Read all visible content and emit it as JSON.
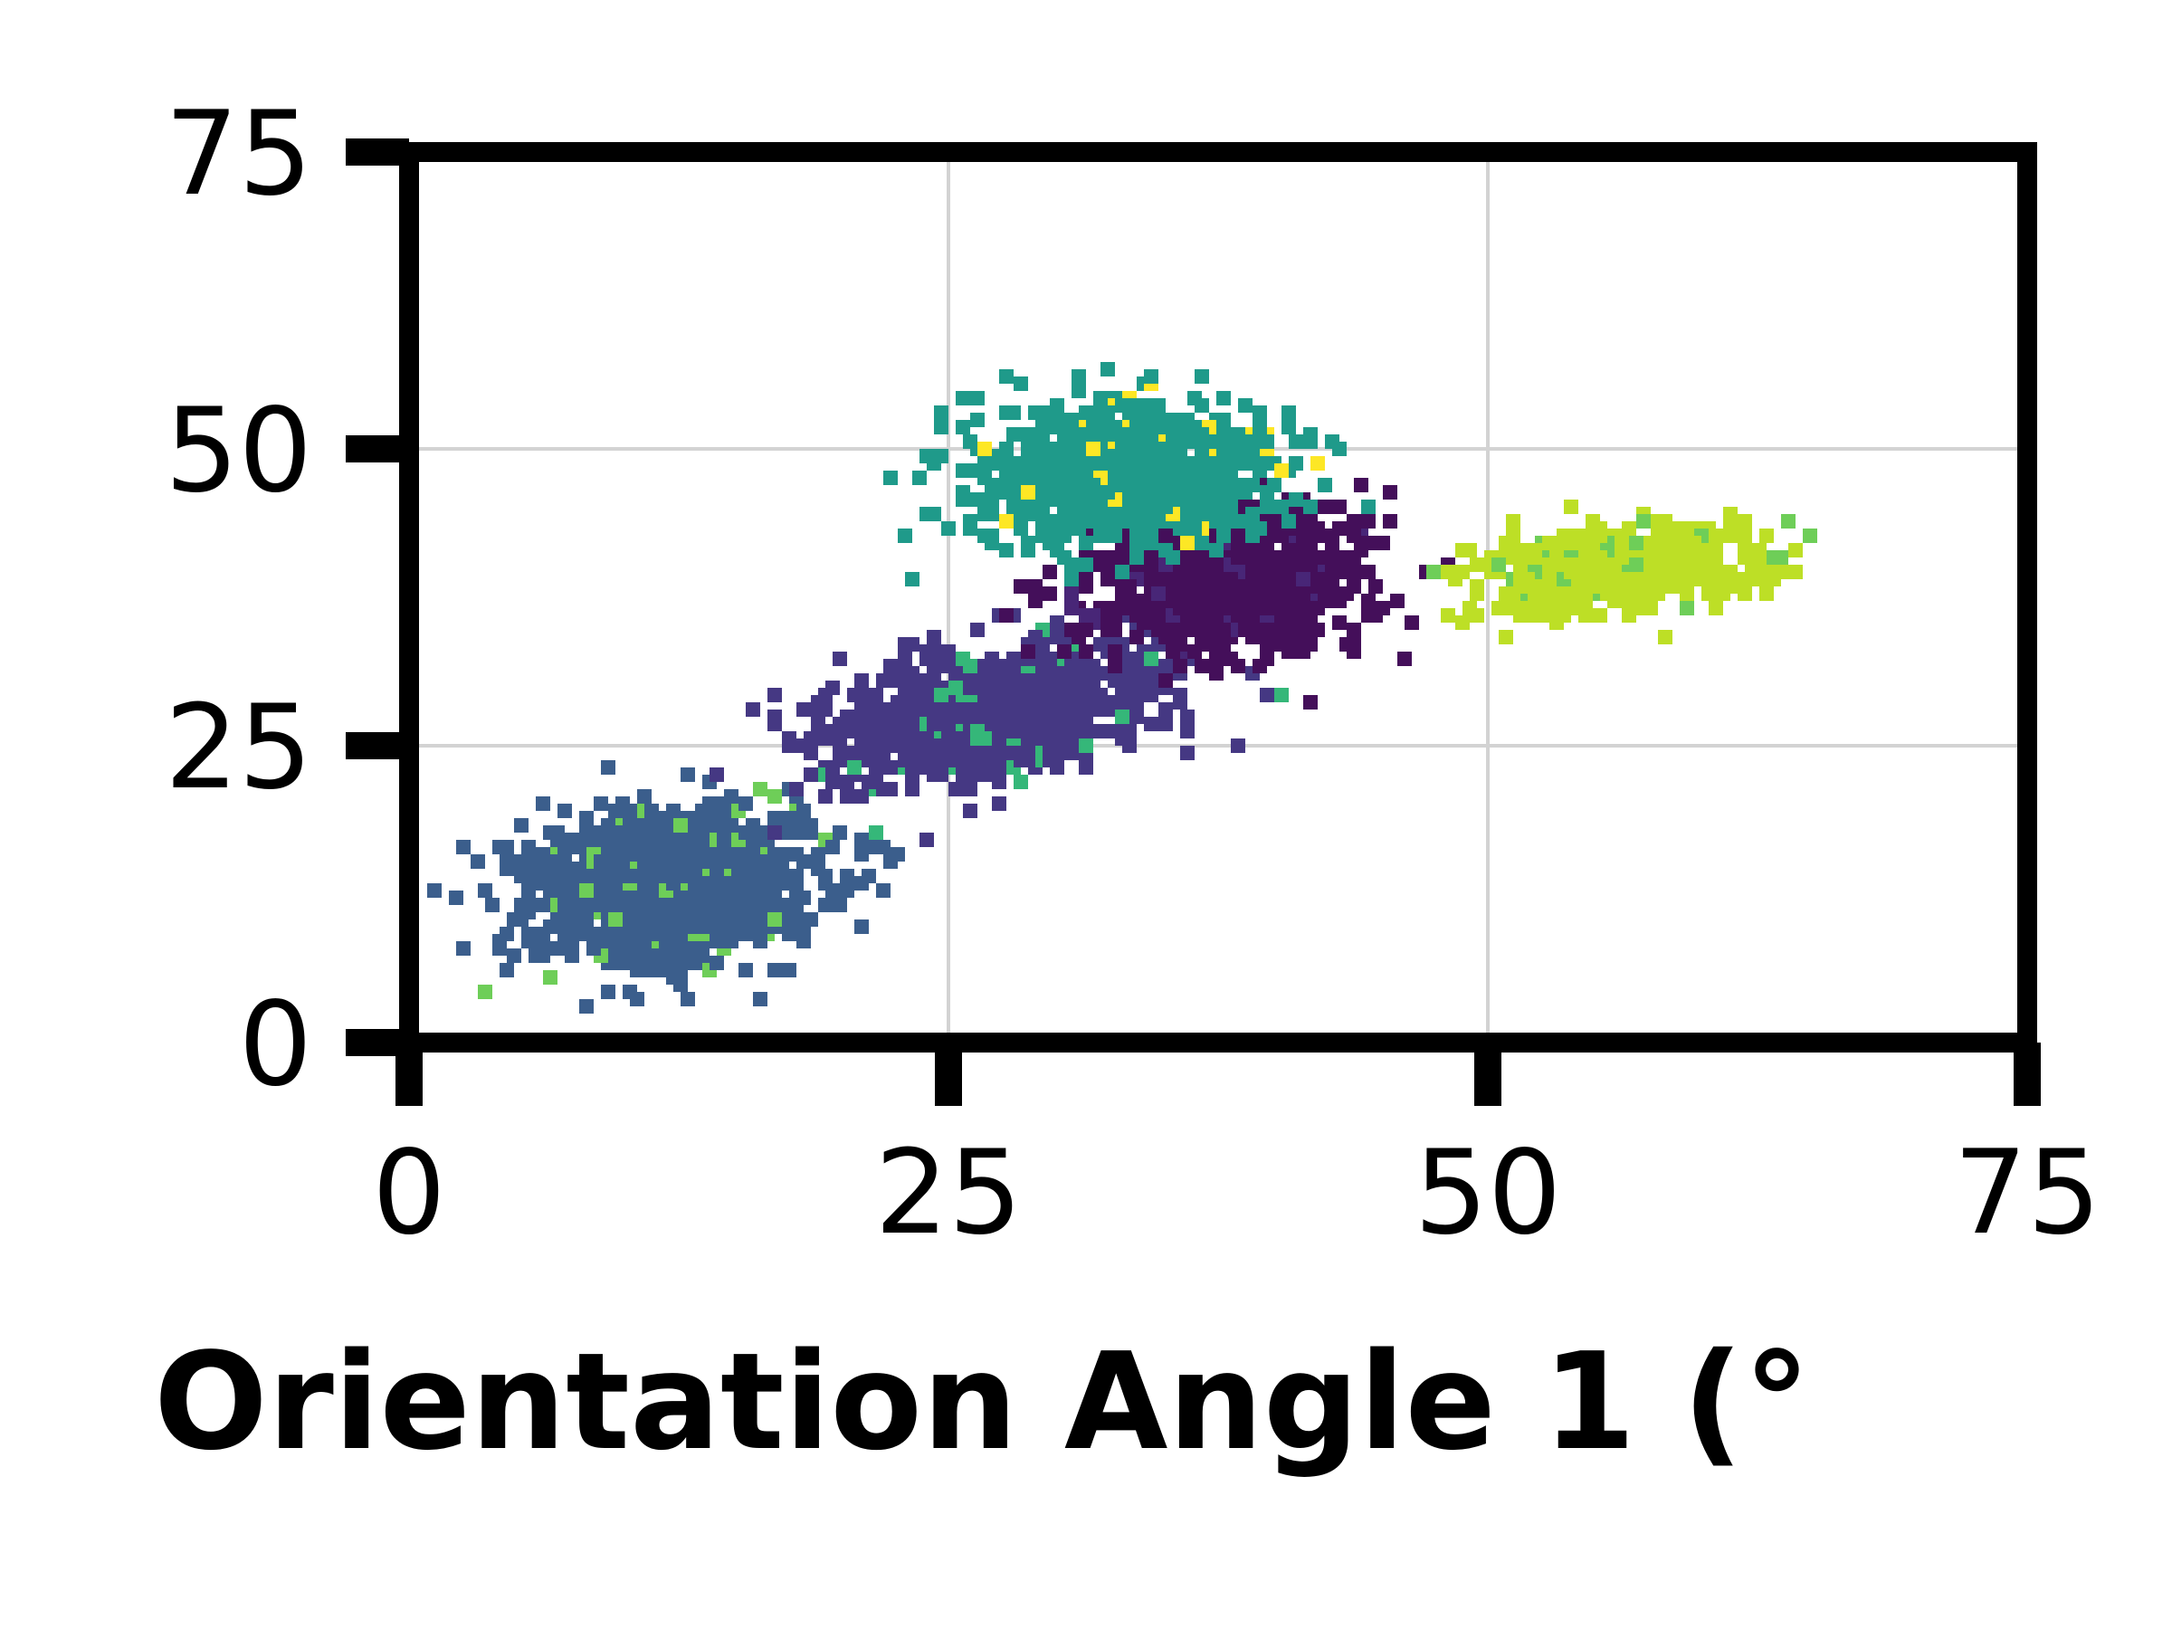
{
  "chart_data": {
    "type": "scatter",
    "title": "",
    "xlabel": "Orientation Angle 1 (°",
    "ylabel": "",
    "xlim": [
      0,
      75
    ],
    "ylim": [
      0,
      75
    ],
    "x_ticks": [
      "0",
      "25",
      "50",
      "75"
    ],
    "y_ticks": [
      "0",
      "25",
      "50",
      "75"
    ],
    "grid": true,
    "colormap": "viridis",
    "clusters": [
      {
        "x": 12,
        "y": 13,
        "spread_x": 5.0,
        "spread_y": 4.2,
        "angle": 28,
        "points": 900,
        "color": "#3b5e8c"
      },
      {
        "x": 27,
        "y": 28,
        "spread_x": 6.0,
        "spread_y": 3.6,
        "angle": 28,
        "points": 800,
        "color": "#453883"
      },
      {
        "x": 38,
        "y": 39,
        "spread_x": 4.6,
        "spread_y": 4.3,
        "angle": 12,
        "points": 700,
        "color": "#440f5a"
      },
      {
        "x": 33,
        "y": 48,
        "spread_x": 5.2,
        "spread_y": 4.1,
        "angle": 8,
        "points": 700,
        "color": "#1f9a8a"
      },
      {
        "x": 56,
        "y": 40,
        "spread_x": 4.2,
        "spread_y": 2.3,
        "angle": 10,
        "points": 500,
        "color": "#bddf26"
      }
    ],
    "cluster_highlights": [
      "#6ece58",
      "#35b779",
      "#482677",
      "#fde725"
    ]
  }
}
